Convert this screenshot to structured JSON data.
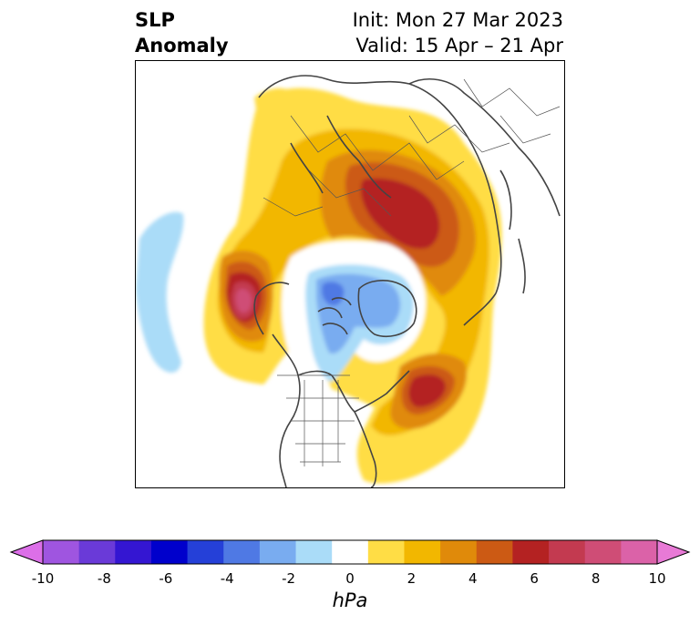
{
  "title": {
    "variable_line1": "SLP",
    "variable_line2": "Anomaly",
    "init_text": "Init: Mon 27 Mar 2023",
    "valid_text": "Valid: 15 Apr – 21 Apr"
  },
  "colorbar": {
    "label": "hPa",
    "min": -10,
    "max": 10,
    "ticks": [
      "-10",
      "-8",
      "-6",
      "-4",
      "-2",
      "0",
      "2",
      "4",
      "6",
      "8",
      "10"
    ],
    "extend": "both",
    "colors": [
      "#dc6fe8",
      "#9f55e0",
      "#6a3ad8",
      "#3416d2",
      "#0000cc",
      "#2540d8",
      "#4f79e4",
      "#79acf0",
      "#aadcf8",
      "#ffffff",
      "#ffdd45",
      "#f2b700",
      "#e08a0a",
      "#cc5a14",
      "#b42222",
      "#c33a50",
      "#cf4d76",
      "#db62a8",
      "#e87ad6"
    ]
  },
  "map": {
    "projection": "north-polar-stereographic",
    "features": [
      "coastlines",
      "country-borders",
      "us-state-borders"
    ],
    "anomaly_centers": [
      {
        "region": "northern Eurasia",
        "sign": "positive",
        "max_hPa": 7
      },
      {
        "region": "northeast Pacific",
        "sign": "positive",
        "max_hPa": 9
      },
      {
        "region": "northwest Atlantic",
        "sign": "positive",
        "max_hPa": 6
      },
      {
        "region": "Arctic / Greenland",
        "sign": "negative",
        "min_hPa": -4
      },
      {
        "region": "central Pacific",
        "sign": "negative",
        "min_hPa": -1
      }
    ]
  }
}
